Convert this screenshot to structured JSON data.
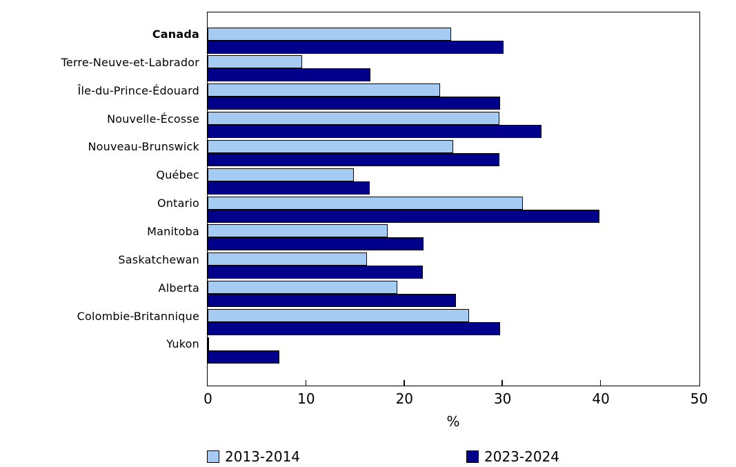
{
  "chart_data": {
    "type": "bar",
    "orientation": "horizontal",
    "title": "",
    "categories": [
      "Canada",
      "Terre-Neuve-et-Labrador",
      "Île-du-Prince-Édouard",
      "Nouvelle-Écosse",
      "Nouveau-Brunswick",
      "Québec",
      "Ontario",
      "Manitoba",
      "Saskatchewan",
      "Alberta",
      "Colombie-Britannique",
      "Yukon"
    ],
    "bold_categories": [
      "Canada"
    ],
    "series": [
      {
        "name": "2013-2014",
        "color": "#a6cbf2",
        "values": [
          24.8,
          9.6,
          23.7,
          29.7,
          25.0,
          14.9,
          32.1,
          18.3,
          16.2,
          19.3,
          26.6,
          0.1
        ]
      },
      {
        "name": "2023-2024",
        "color": "#00008b",
        "values": [
          30.1,
          16.6,
          29.8,
          34.0,
          29.7,
          16.5,
          39.9,
          22.0,
          21.9,
          25.3,
          29.8,
          7.3
        ]
      }
    ],
    "xlabel": "%",
    "xlim": [
      0,
      50
    ],
    "xticks": [
      0,
      10,
      20,
      30,
      40,
      50
    ],
    "bar_border_color": "#000000",
    "legend_position": "bottom",
    "grid": false
  }
}
